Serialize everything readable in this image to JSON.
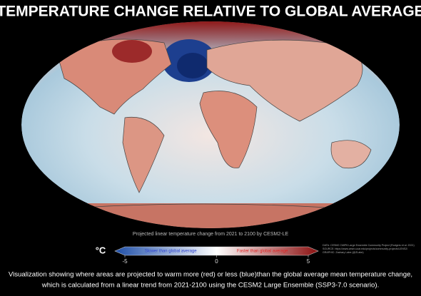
{
  "header": {
    "title": "TEMPERATURE CHANGE RELATIVE TO GLOBAL AVERAGE"
  },
  "map": {
    "subtitle": "Projected linear temperature change from 2021 to 2100 by CESM2-LE"
  },
  "colorbar": {
    "unit": "°C",
    "clim": [
      -5,
      5
    ],
    "ticks": [
      -5,
      0,
      5
    ],
    "low_label": "Slower than global average",
    "high_label": "Faster than global average",
    "low_color": "#1f4fa8",
    "mid_color": "#ffffff",
    "high_color": "#8b1010"
  },
  "credits": [
    "DATA: CESM2 CMIP6 Large Ensemble Community Project (Rodgers et al. 2021)",
    "SOURCE: https://www.cesm.ucar.edu/projects/community-projects/LENS2/",
    "GRAPHIC: Zachary Labe (@ZLabe)"
  ],
  "caption": [
    "Visualization showing where areas are projected to warm more (red) or less (blue)than the global average mean temperature change,",
    "which is calculated from a linear trend from 2021-2100 using the CESM2 Large Ensemble (SSP3-7.0 scenario)."
  ]
}
